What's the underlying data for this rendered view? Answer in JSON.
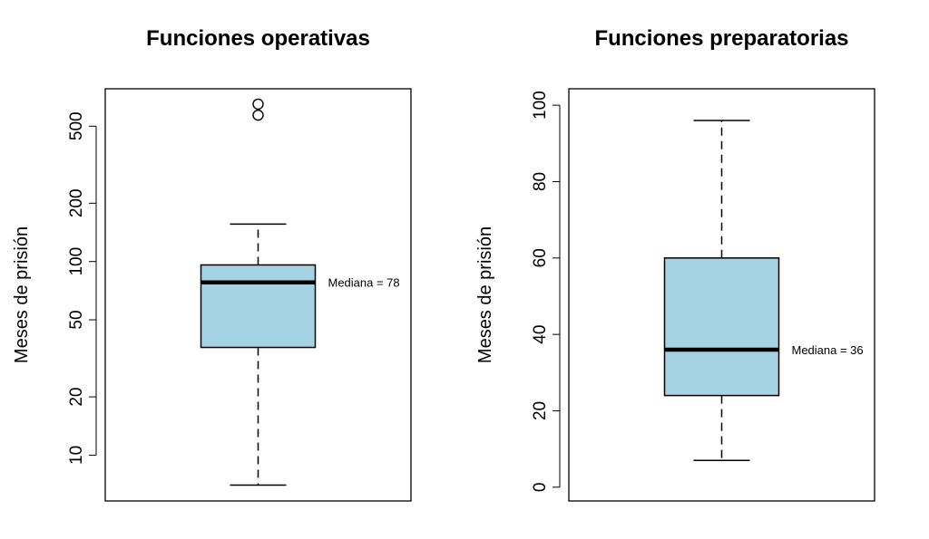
{
  "chart_data": [
    {
      "type": "box",
      "title": "Funciones operativas",
      "ylabel": "Meses de prisión",
      "yscale": "log",
      "ylim": [
        5.8,
        780
      ],
      "yticks": [
        10,
        20,
        50,
        100,
        200,
        500
      ],
      "box": {
        "whisker_low": 7,
        "q1": 36,
        "median": 78,
        "q3": 96,
        "whisker_high": 156
      },
      "outliers": [
        570,
        650
      ],
      "annotation": "Mediana = 78",
      "fill_color": "#a6d3e3"
    },
    {
      "type": "box",
      "title": "Funciones preparatorias",
      "ylabel": "Meses de prisión",
      "yscale": "linear",
      "ylim": [
        -3.6,
        104.3
      ],
      "yticks": [
        0,
        20,
        40,
        60,
        80,
        100
      ],
      "box": {
        "whisker_low": 7,
        "q1": 24,
        "median": 36,
        "q3": 60,
        "whisker_high": 96
      },
      "outliers": [],
      "annotation": "Mediana = 36",
      "fill_color": "#a6d3e3"
    }
  ]
}
